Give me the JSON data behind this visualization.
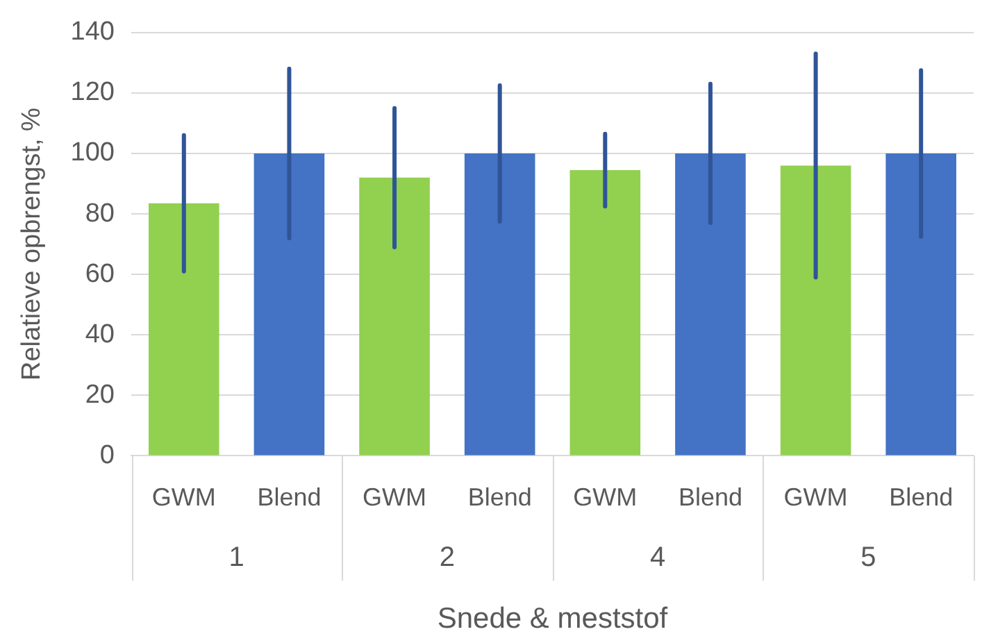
{
  "chart_data": {
    "type": "bar",
    "xlabel": "Snede & meststof",
    "ylabel": "Relatieve opbrengst, %",
    "categories": [
      "GWM",
      "Blend",
      "GWM",
      "Blend",
      "GWM",
      "Blend",
      "GWM",
      "Blend"
    ],
    "values": [
      83.5,
      100,
      92,
      100,
      94.5,
      100,
      96,
      100
    ],
    "colors": [
      "#92d050",
      "#4472c4",
      "#92d050",
      "#4472c4",
      "#92d050",
      "#4472c4",
      "#92d050",
      "#4472c4"
    ],
    "errors": [
      22.5,
      28,
      23,
      22.5,
      12,
      23,
      37,
      27.5
    ],
    "annotations": [
      "1",
      "2",
      "4",
      "5"
    ],
    "ylim": [
      0,
      140
    ],
    "yticks": [
      0,
      20,
      40,
      60,
      80,
      100,
      120,
      140
    ],
    "grid": "y"
  }
}
